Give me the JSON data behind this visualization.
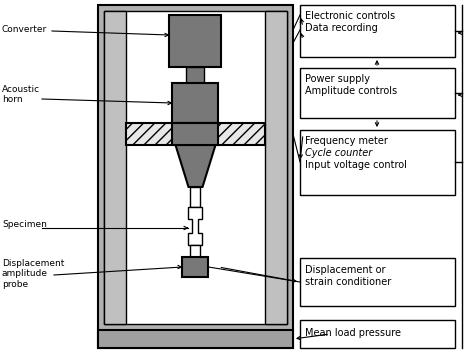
{
  "bg_color": "#ffffff",
  "dark_gray": "#787878",
  "medium_gray": "#a0a0a0",
  "light_gray": "#c0c0c0",
  "very_light_gray": "#d8d8d8",
  "frame_gray": "#b0b0b0",
  "labels": {
    "converter": "Converter",
    "acoustic_horn": "Acoustic\nhorn",
    "specimen": "Specimen",
    "displacement": "Displacement\namplitude\nprobe",
    "box1_line1": "Electronic controls",
    "box1_line2": "Data recording",
    "box2_line1": "Power supply",
    "box2_line2": "Amplitude controls",
    "box3_line1": "Frequency meter",
    "box3_line2": "Cycle counter",
    "box3_line3": "Input voltage control",
    "box4_line1": "Displacement or",
    "box4_line2": "strain conditioner",
    "box5": "Mean load pressure"
  },
  "font_size": 6.5,
  "label_font_size": 6.5
}
